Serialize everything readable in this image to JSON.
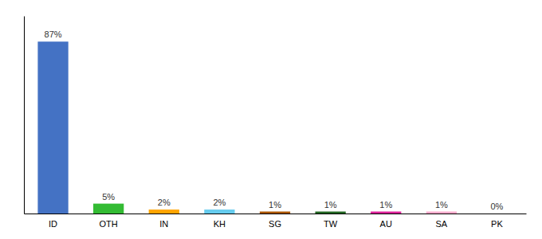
{
  "chart_data": {
    "type": "bar",
    "categories": [
      "ID",
      "OTH",
      "IN",
      "KH",
      "SG",
      "TW",
      "AU",
      "SA",
      "PK"
    ],
    "values": [
      87,
      5,
      2,
      2,
      1,
      1,
      1,
      1,
      0
    ],
    "value_labels": [
      "87%",
      "5%",
      "2%",
      "2%",
      "1%",
      "1%",
      "1%",
      "1%",
      "0%"
    ],
    "data_labels": true,
    "colors": [
      "#4472C4",
      "#33BB33",
      "#FFA500",
      "#66CCEE",
      "#AA5500",
      "#226622",
      "#DD2299",
      "#FFAACC",
      "#AAAAAA"
    ],
    "ylim": [
      0,
      100
    ],
    "tick_labels": "x",
    "grid": false
  }
}
